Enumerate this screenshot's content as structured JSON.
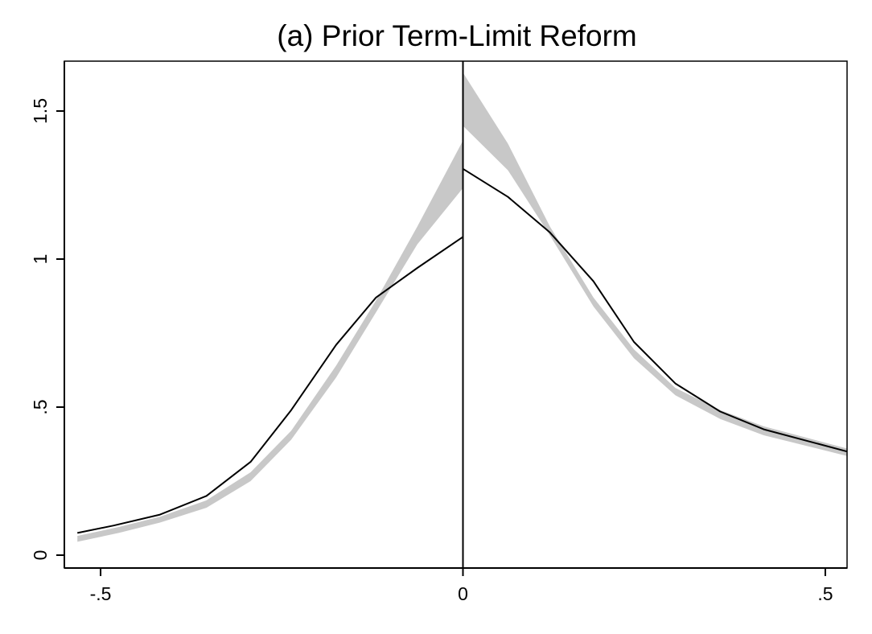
{
  "chart_data": {
    "type": "line",
    "title": "(a) Prior Term-Limit Reform",
    "xlabel": "",
    "ylabel": "",
    "xlim": [
      -0.55,
      0.53
    ],
    "ylim": [
      0,
      1.65
    ],
    "x_ticks": [
      {
        "value": -0.5,
        "label": "-.5"
      },
      {
        "value": 0,
        "label": "0"
      },
      {
        "value": 0.5,
        "label": ".5"
      }
    ],
    "y_ticks": [
      {
        "value": 0,
        "label": "0"
      },
      {
        "value": 0.5,
        "label": ".5"
      },
      {
        "value": 1,
        "label": "1"
      },
      {
        "value": 1.5,
        "label": "1.5"
      }
    ],
    "grid": false,
    "legend": "none",
    "cutoff": 0,
    "series": [
      {
        "kind": "line",
        "color": "#000000",
        "segments": [
          {
            "x": [
              -0.532,
              -0.482,
              -0.418,
              -0.354,
              -0.293,
              -0.237,
              -0.175,
              -0.12,
              -0.063,
              0
            ],
            "y": [
              0.075,
              0.1,
              0.137,
              0.2,
              0.315,
              0.49,
              0.71,
              0.87,
              0.97,
              1.075
            ]
          },
          {
            "x": [
              0,
              0.062,
              0.12,
              0.18,
              0.236,
              0.293,
              0.355,
              0.415,
              0.53
            ],
            "y": [
              1.305,
              1.21,
              1.09,
              0.925,
              0.72,
              0.58,
              0.485,
              0.425,
              0.35
            ]
          }
        ]
      },
      {
        "kind": "band",
        "color": "#c8c8c8",
        "segments": [
          {
            "x": [
              -0.532,
              -0.475,
              -0.418,
              -0.354,
              -0.293,
              -0.237,
              -0.175,
              -0.12,
              -0.063,
              0
            ],
            "lower": [
              0.045,
              0.075,
              0.11,
              0.16,
              0.25,
              0.39,
              0.6,
              0.82,
              1.05,
              1.24
            ],
            "upper": [
              0.065,
              0.095,
              0.13,
              0.185,
              0.28,
              0.42,
              0.64,
              0.86,
              1.11,
              1.4
            ]
          },
          {
            "x": [
              0,
              0.062,
              0.12,
              0.18,
              0.236,
              0.293,
              0.355,
              0.415,
              0.53
            ],
            "lower": [
              1.45,
              1.3,
              1.08,
              0.84,
              0.665,
              0.54,
              0.46,
              0.405,
              0.335
            ],
            "upper": [
              1.63,
              1.39,
              1.11,
              0.87,
              0.695,
              0.565,
              0.49,
              0.435,
              0.36
            ]
          }
        ]
      }
    ]
  }
}
